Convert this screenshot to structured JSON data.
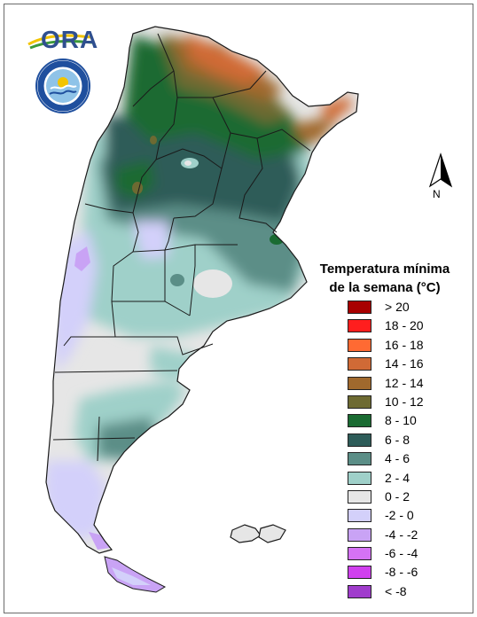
{
  "branding": {
    "logo_text": "ORA",
    "logo_colors": {
      "text": "#2f4f8f",
      "swoosh_yellow": "#f2c400",
      "swoosh_green": "#3d9a3a"
    },
    "seal_icon": "national-weather-service-seal-icon",
    "seal_colors": {
      "ring": "#1f4f9e",
      "inner": "#8fc3e8"
    }
  },
  "north_arrow": {
    "icon": "north-arrow-icon",
    "letter": "N"
  },
  "legend": {
    "title_line1": "Temperatura mínima",
    "title_line2": "de la semana (°C)",
    "items": [
      {
        "label": "> 20",
        "color": "#a80000"
      },
      {
        "label": "18 - 20",
        "color": "#ff1e1e"
      },
      {
        "label": "16 - 18",
        "color": "#ff6a33"
      },
      {
        "label": "14 - 16",
        "color": "#d06a36"
      },
      {
        "label": "12 - 14",
        "color": "#a0692d"
      },
      {
        "label": "10 - 12",
        "color": "#6d6a32"
      },
      {
        "label": "8 - 10",
        "color": "#1a6b32"
      },
      {
        "label": "6 - 8",
        "color": "#2e5c59"
      },
      {
        "label": "4 - 6",
        "color": "#5b8e87"
      },
      {
        "label": "2 - 4",
        "color": "#9fd0c9"
      },
      {
        "label": "0 - 2",
        "color": "#e6e6e6"
      },
      {
        "label": "-2 - 0",
        "color": "#d3d0fa"
      },
      {
        "label": "-4 - -2",
        "color": "#c9a3f5"
      },
      {
        "label": "-6 - -4",
        "color": "#d572f5"
      },
      {
        "label": "-8 - -6",
        "color": "#d040ee"
      },
      {
        "label": "< -8",
        "color": "#a03ccc"
      }
    ]
  },
  "map": {
    "country": "Argentina",
    "variable": "weekly minimum temperature",
    "province_border_color": "#1a1a1a"
  }
}
